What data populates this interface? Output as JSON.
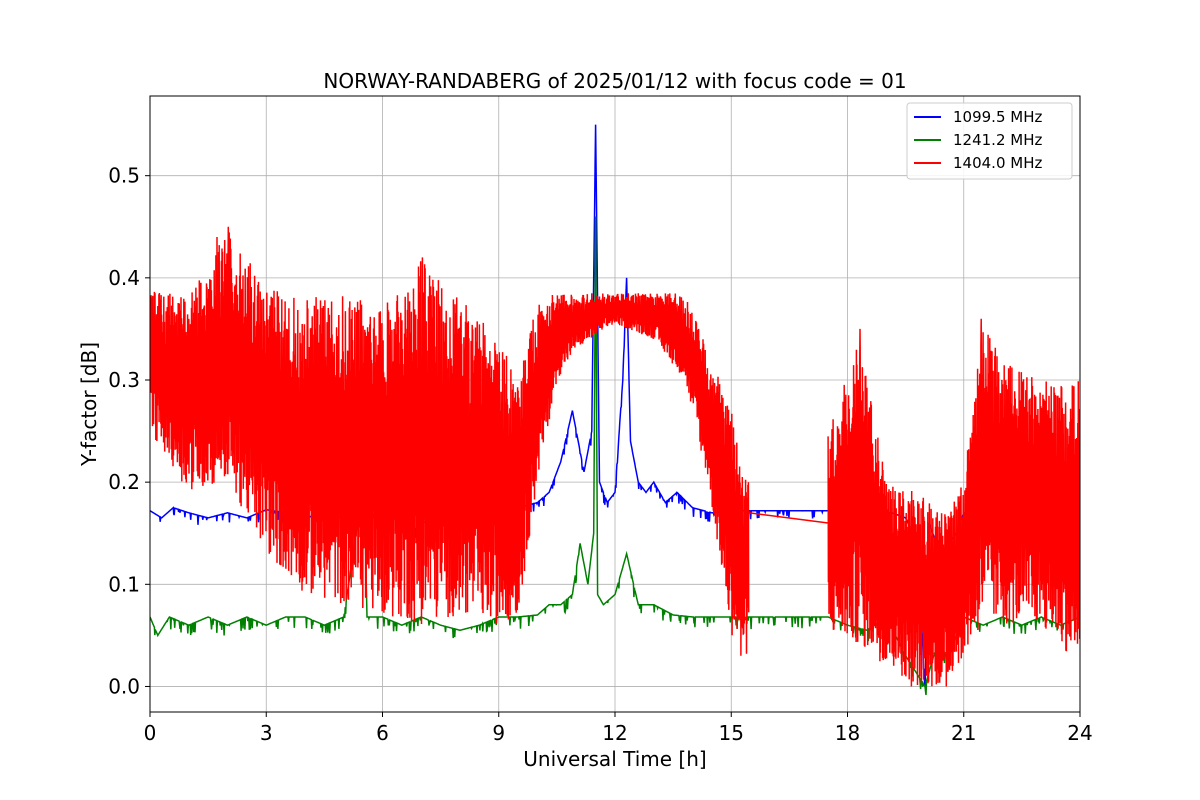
{
  "chart_data": {
    "type": "line",
    "title": "NORWAY-RANDABERG of 2025/01/12 with focus code = 01",
    "xlabel": "Universal Time [h]",
    "ylabel": "Y-factor [dB]",
    "xlim": [
      0,
      24
    ],
    "ylim": [
      -0.025,
      0.578
    ],
    "xticks": [
      0,
      3,
      6,
      9,
      12,
      15,
      18,
      21,
      24
    ],
    "xtick_labels": [
      "0",
      "3",
      "6",
      "9",
      "12",
      "15",
      "18",
      "21",
      "24"
    ],
    "yticks": [
      0.0,
      0.1,
      0.2,
      0.3,
      0.4,
      0.5
    ],
    "ytick_labels": [
      "0.0",
      "0.1",
      "0.2",
      "0.3",
      "0.4",
      "0.5"
    ],
    "grid": true,
    "legend_position": "top-right",
    "series": [
      {
        "name": "1099.5 MHz",
        "color": "#0000ff",
        "x": [
          0,
          0.3,
          0.6,
          1.0,
          1.5,
          2.0,
          2.5,
          3.0,
          3.5,
          4.0,
          4.5,
          5.0,
          5.5,
          6.0,
          6.3,
          6.6,
          7.0,
          7.5,
          8.0,
          8.5,
          9.0,
          9.5,
          10.0,
          10.3,
          10.6,
          10.9,
          11.2,
          11.4,
          11.5,
          11.6,
          11.8,
          12.0,
          12.2,
          12.3,
          12.4,
          12.6,
          12.8,
          13.0,
          13.3,
          13.6,
          14.0,
          14.5,
          15.0,
          15.4,
          16.0,
          17.0,
          17.5,
          18.0,
          18.5,
          19.0,
          19.5,
          19.8,
          20.0,
          20.1,
          20.4,
          20.8,
          21.0,
          21.5,
          22.0,
          22.5,
          23.0,
          23.5,
          24.0
        ],
        "y": [
          0.172,
          0.165,
          0.175,
          0.17,
          0.165,
          0.17,
          0.165,
          0.173,
          0.17,
          0.165,
          0.17,
          0.165,
          0.172,
          0.165,
          0.17,
          0.145,
          0.16,
          0.165,
          0.17,
          0.165,
          0.172,
          0.175,
          0.18,
          0.19,
          0.22,
          0.27,
          0.21,
          0.25,
          0.55,
          0.2,
          0.18,
          0.19,
          0.3,
          0.4,
          0.24,
          0.2,
          0.19,
          0.2,
          0.18,
          0.19,
          0.175,
          0.17,
          0.172,
          0.172,
          0.172,
          0.172,
          0.172,
          0.172,
          0.17,
          0.172,
          0.165,
          0.14,
          0.0,
          0.16,
          0.13,
          0.15,
          0.17,
          0.165,
          0.172,
          0.17,
          0.172,
          0.17,
          0.172
        ]
      },
      {
        "name": "1241.2 MHz",
        "color": "#008000",
        "x": [
          0,
          0.2,
          0.5,
          1.0,
          1.5,
          2.0,
          2.5,
          3.0,
          3.5,
          4.0,
          4.5,
          5.0,
          5.4,
          5.5,
          5.6,
          6.0,
          6.5,
          7.0,
          7.5,
          8.0,
          8.5,
          9.0,
          9.5,
          10.0,
          10.3,
          10.6,
          10.9,
          11.1,
          11.3,
          11.45,
          11.5,
          11.55,
          11.7,
          12.0,
          12.3,
          12.6,
          13.0,
          13.5,
          14.0,
          14.5,
          15.0,
          16.0,
          17.0,
          17.5,
          18.0,
          18.5,
          19.0,
          19.5,
          20.0,
          20.3,
          20.6,
          21.0,
          21.5,
          22.0,
          22.5,
          23.0,
          23.5,
          24.0
        ],
        "y": [
          0.068,
          0.05,
          0.068,
          0.06,
          0.068,
          0.06,
          0.068,
          0.06,
          0.068,
          0.068,
          0.06,
          0.068,
          0.17,
          0.25,
          0.068,
          0.068,
          0.06,
          0.068,
          0.06,
          0.055,
          0.06,
          0.068,
          0.068,
          0.07,
          0.08,
          0.08,
          0.09,
          0.14,
          0.1,
          0.15,
          0.46,
          0.09,
          0.08,
          0.09,
          0.13,
          0.08,
          0.08,
          0.07,
          0.068,
          0.068,
          0.068,
          0.068,
          0.068,
          0.068,
          0.06,
          0.055,
          0.068,
          0.03,
          0.0,
          0.04,
          0.03,
          0.068,
          0.06,
          0.068,
          0.06,
          0.068,
          0.06,
          0.068
        ]
      },
      {
        "name": "1404.0 MHz",
        "color": "#ff0000",
        "profile": [
          {
            "x": 0.0,
            "lo": 0.25,
            "hi": 0.39
          },
          {
            "x": 1.0,
            "lo": 0.19,
            "hi": 0.38
          },
          {
            "x": 2.0,
            "lo": 0.2,
            "hi": 0.45
          },
          {
            "x": 3.0,
            "lo": 0.13,
            "hi": 0.39
          },
          {
            "x": 4.0,
            "lo": 0.09,
            "hi": 0.38
          },
          {
            "x": 5.0,
            "lo": 0.08,
            "hi": 0.385
          },
          {
            "x": 6.0,
            "lo": 0.07,
            "hi": 0.37
          },
          {
            "x": 7.0,
            "lo": 0.06,
            "hi": 0.42
          },
          {
            "x": 8.0,
            "lo": 0.07,
            "hi": 0.38
          },
          {
            "x": 9.0,
            "lo": 0.06,
            "hi": 0.34
          },
          {
            "x": 9.5,
            "lo": 0.07,
            "hi": 0.3
          },
          {
            "x": 10.0,
            "lo": 0.2,
            "hi": 0.38
          },
          {
            "x": 10.5,
            "lo": 0.3,
            "hi": 0.385
          },
          {
            "x": 11.0,
            "lo": 0.33,
            "hi": 0.385
          },
          {
            "x": 12.0,
            "lo": 0.355,
            "hi": 0.385
          },
          {
            "x": 13.0,
            "lo": 0.34,
            "hi": 0.385
          },
          {
            "x": 13.8,
            "lo": 0.3,
            "hi": 0.385
          },
          {
            "x": 14.4,
            "lo": 0.2,
            "hi": 0.33
          },
          {
            "x": 15.0,
            "lo": 0.05,
            "hi": 0.27
          },
          {
            "x": 15.4,
            "lo": 0.03,
            "hi": 0.2
          },
          {
            "x": 17.5,
            "lo": 0.05,
            "hi": 0.25
          },
          {
            "x": 18.3,
            "lo": 0.04,
            "hi": 0.35
          },
          {
            "x": 19.0,
            "lo": 0.02,
            "hi": 0.2
          },
          {
            "x": 19.8,
            "lo": 0.0,
            "hi": 0.19
          },
          {
            "x": 20.5,
            "lo": 0.0,
            "hi": 0.17
          },
          {
            "x": 21.0,
            "lo": 0.03,
            "hi": 0.2
          },
          {
            "x": 21.5,
            "lo": 0.06,
            "hi": 0.36
          },
          {
            "x": 22.0,
            "lo": 0.06,
            "hi": 0.32
          },
          {
            "x": 23.0,
            "lo": 0.06,
            "hi": 0.3
          },
          {
            "x": 24.0,
            "lo": 0.02,
            "hi": 0.3
          }
        ],
        "gap": [
          15.45,
          17.5
        ],
        "gap_line": [
          {
            "x": 15.45,
            "y": 0.17
          },
          {
            "x": 17.5,
            "y": 0.16
          }
        ],
        "spikes": [
          {
            "x": 2.02,
            "y": 0.45
          },
          {
            "x": 1.73,
            "y": 0.44
          },
          {
            "x": 7.03,
            "y": 0.42
          },
          {
            "x": 18.32,
            "y": 0.35
          },
          {
            "x": 21.45,
            "y": 0.36
          },
          {
            "x": 19.65,
            "y": 0.0
          },
          {
            "x": 20.55,
            "y": 0.0
          },
          {
            "x": 15.25,
            "y": 0.03
          }
        ]
      }
    ]
  }
}
